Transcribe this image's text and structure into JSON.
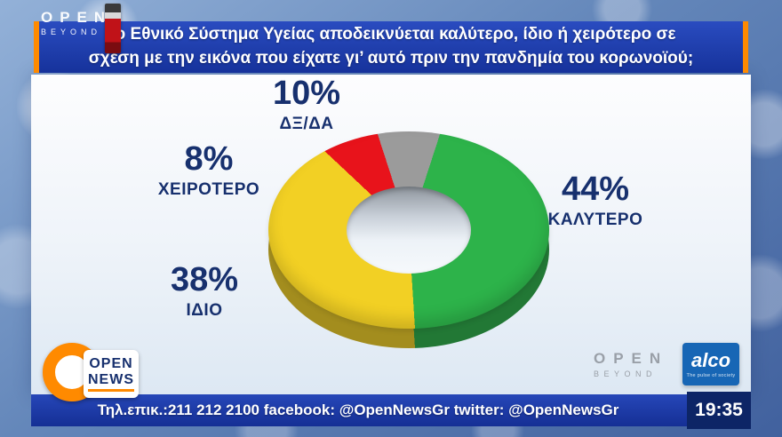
{
  "banner": {
    "line1": "Το Εθνικό Σύστημα Υγείας αποδεικνύεται καλύτερο, ίδιο ή χειρότερο σε",
    "line2": "σχέση με την εικόνα που είχατε γι’ αυτό πριν την πανδημία του κορωνοϊού;"
  },
  "watermark": {
    "open": "OPEN",
    "beyond": "BEYOND"
  },
  "chart_data": {
    "type": "pie",
    "donut": true,
    "start_angle_deg": -18,
    "title": "",
    "slices": [
      {
        "name": "ΔΞ/ΔΑ",
        "value": 10,
        "pct_label": "10%",
        "color": "#9b9b9b"
      },
      {
        "name": "ΚΑΛΥΤΕΡΟ",
        "value": 44,
        "pct_label": "44%",
        "color": "#2db34a"
      },
      {
        "name": "ΙΔΙΟ",
        "value": 38,
        "pct_label": "38%",
        "color": "#f2d024"
      },
      {
        "name": "ΧΕΙΡΟΤΕΡΟ",
        "value": 8,
        "pct_label": "8%",
        "color": "#e8131b"
      }
    ],
    "legend_position": "around"
  },
  "logos": {
    "open_news": {
      "line1": "OPEN",
      "line2": "NEWS"
    },
    "open_beyond": {
      "line1": "OPEN",
      "line2": "BEYOND"
    },
    "alco": {
      "name": "alco",
      "tagline": "The pulse of society"
    }
  },
  "footer": {
    "ticker": "Τηλ.επικ.:211 212 2100 facebook: @OpenNewsGr twitter: @OpenNewsGr",
    "clock": "19:35"
  },
  "colors": {
    "banner_blue": "#16329b",
    "accent_orange": "#ff8a00",
    "label_navy": "#17306e",
    "footer_blue": "#1c3aa6",
    "clock_navy": "#0d2566"
  }
}
